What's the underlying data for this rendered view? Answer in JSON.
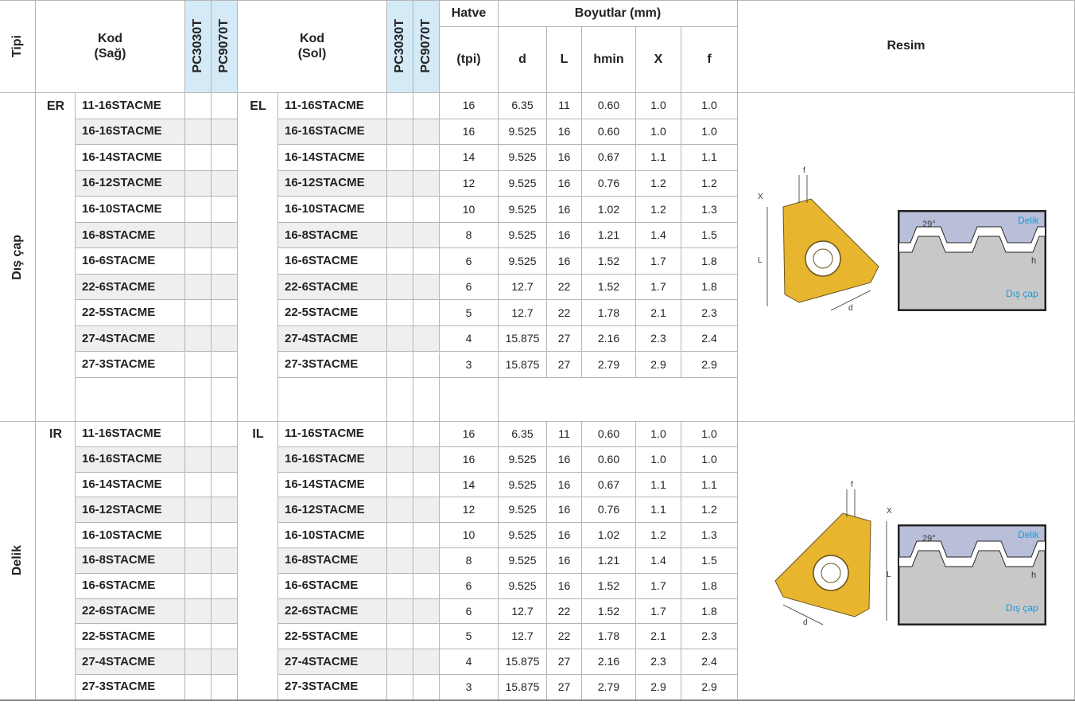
{
  "header": {
    "tipi": "Tipi",
    "kod_right": "Kod\n(Sağ)",
    "pc_a": "PC3030T",
    "pc_b": "PC9070T",
    "kod_left": "Kod\n(Sol)",
    "pc_c": "PC3030T",
    "pc_d": "PC9070T",
    "hatve": "Hatve",
    "tpi": "(tpi)",
    "boyutlar": "Boyutlar (mm)",
    "d": "d",
    "L": "L",
    "hmin": "hmin",
    "X": "X",
    "f": "f",
    "resim": "Resim"
  },
  "sections": [
    {
      "type": "Dış çap",
      "right_prefix": "ER",
      "left_prefix": "EL",
      "rows": [
        [
          "11-16STACME",
          "11-16STACME",
          "16",
          "6.35",
          "11",
          "0.60",
          "1.0",
          "1.0"
        ],
        [
          "16-16STACME",
          "16-16STACME",
          "16",
          "9.525",
          "16",
          "0.60",
          "1.0",
          "1.0"
        ],
        [
          "16-14STACME",
          "16-14STACME",
          "14",
          "9.525",
          "16",
          "0.67",
          "1.1",
          "1.1"
        ],
        [
          "16-12STACME",
          "16-12STACME",
          "12",
          "9.525",
          "16",
          "0.76",
          "1.2",
          "1.2"
        ],
        [
          "16-10STACME",
          "16-10STACME",
          "10",
          "9.525",
          "16",
          "1.02",
          "1.2",
          "1.3"
        ],
        [
          "16-8STACME",
          "16-8STACME",
          "8",
          "9.525",
          "16",
          "1.21",
          "1.4",
          "1.5"
        ],
        [
          "16-6STACME",
          "16-6STACME",
          "6",
          "9.525",
          "16",
          "1.52",
          "1.7",
          "1.8"
        ],
        [
          "22-6STACME",
          "22-6STACME",
          "6",
          "12.7",
          "22",
          "1.52",
          "1.7",
          "1.8"
        ],
        [
          "22-5STACME",
          "22-5STACME",
          "5",
          "12.7",
          "22",
          "1.78",
          "2.1",
          "2.3"
        ],
        [
          "27-4STACME",
          "27-4STACME",
          "4",
          "15.875",
          "27",
          "2.16",
          "2.3",
          "2.4"
        ],
        [
          "27-3STACME",
          "27-3STACME",
          "3",
          "15.875",
          "27",
          "2.79",
          "2.9",
          "2.9"
        ]
      ],
      "figure": {
        "f": "f",
        "x": "X",
        "l": "L",
        "d": "d",
        "angle": "29°",
        "hole": "Delik",
        "h": "h",
        "outer": "Dış çap"
      }
    },
    {
      "type": "Delik",
      "right_prefix": "IR",
      "left_prefix": "IL",
      "rows": [
        [
          "11-16STACME",
          "11-16STACME",
          "16",
          "6.35",
          "11",
          "0.60",
          "1.0",
          "1.0"
        ],
        [
          "16-16STACME",
          "16-16STACME",
          "16",
          "9.525",
          "16",
          "0.60",
          "1.0",
          "1.0"
        ],
        [
          "16-14STACME",
          "16-14STACME",
          "14",
          "9.525",
          "16",
          "0.67",
          "1.1",
          "1.1"
        ],
        [
          "16-12STACME",
          "16-12STACME",
          "12",
          "9.525",
          "16",
          "0.76",
          "1.1",
          "1.2"
        ],
        [
          "16-10STACME",
          "16-10STACME",
          "10",
          "9.525",
          "16",
          "1.02",
          "1.2",
          "1.3"
        ],
        [
          "16-8STACME",
          "16-8STACME",
          "8",
          "9.525",
          "16",
          "1.21",
          "1.4",
          "1.5"
        ],
        [
          "16-6STACME",
          "16-6STACME",
          "6",
          "9.525",
          "16",
          "1.52",
          "1.7",
          "1.8"
        ],
        [
          "22-6STACME",
          "22-6STACME",
          "6",
          "12.7",
          "22",
          "1.52",
          "1.7",
          "1.8"
        ],
        [
          "22-5STACME",
          "22-5STACME",
          "5",
          "12.7",
          "22",
          "1.78",
          "2.1",
          "2.3"
        ],
        [
          "27-4STACME",
          "27-4STACME",
          "4",
          "15.875",
          "27",
          "2.16",
          "2.3",
          "2.4"
        ],
        [
          "27-3STACME",
          "27-3STACME",
          "3",
          "15.875",
          "27",
          "2.79",
          "2.9",
          "2.9"
        ]
      ],
      "figure": {
        "f": "f",
        "x": "X",
        "l": "L",
        "d": "d",
        "angle": "29°",
        "hole": "Delik",
        "h": "h",
        "outer": "Dış çap"
      }
    }
  ]
}
